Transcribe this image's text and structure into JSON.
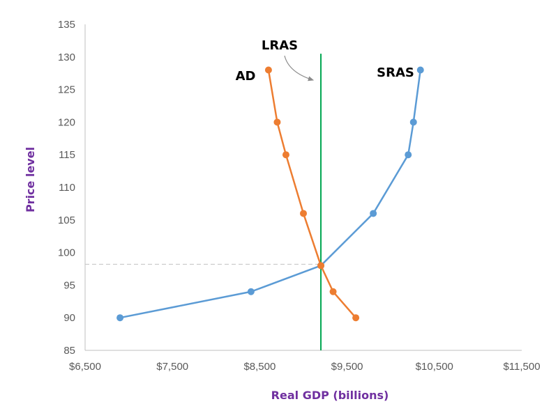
{
  "chart_data": {
    "type": "line",
    "title": "",
    "xlabel": "Real GDP (billions)",
    "ylabel": "Price level",
    "xlim": [
      6500,
      11500
    ],
    "ylim": [
      85,
      135
    ],
    "x_ticks": [
      "$6,500",
      "$7,500",
      "$8,500",
      "$9,500",
      "$10,500",
      "$11,500"
    ],
    "x_tick_values": [
      6500,
      7500,
      8500,
      9500,
      10500,
      11500
    ],
    "y_ticks": [
      "85",
      "90",
      "95",
      "100",
      "105",
      "110",
      "115",
      "120",
      "125",
      "130",
      "135"
    ],
    "y_tick_values": [
      85,
      90,
      95,
      100,
      105,
      110,
      115,
      120,
      125,
      130,
      135
    ],
    "grid": false,
    "series": [
      {
        "name": "SRAS",
        "color": "#5b9bd5",
        "points": [
          [
            6900,
            90
          ],
          [
            8400,
            94
          ],
          [
            9200,
            98
          ],
          [
            9800,
            106
          ],
          [
            10200,
            115
          ],
          [
            10260,
            120
          ],
          [
            10340,
            128
          ]
        ]
      },
      {
        "name": "AD",
        "color": "#ed7d31",
        "points": [
          [
            8600,
            128
          ],
          [
            8700,
            120
          ],
          [
            8800,
            115
          ],
          [
            9000,
            106
          ],
          [
            9200,
            98
          ],
          [
            9340,
            94
          ],
          [
            9600,
            90
          ]
        ]
      }
    ],
    "lras": {
      "name": "LRAS",
      "x": 9200,
      "color": "#00a651",
      "y_top": 130.5
    },
    "equilibrium": {
      "x": 9200,
      "y": 98.2,
      "guide_color": "#c8c8c8"
    }
  }
}
